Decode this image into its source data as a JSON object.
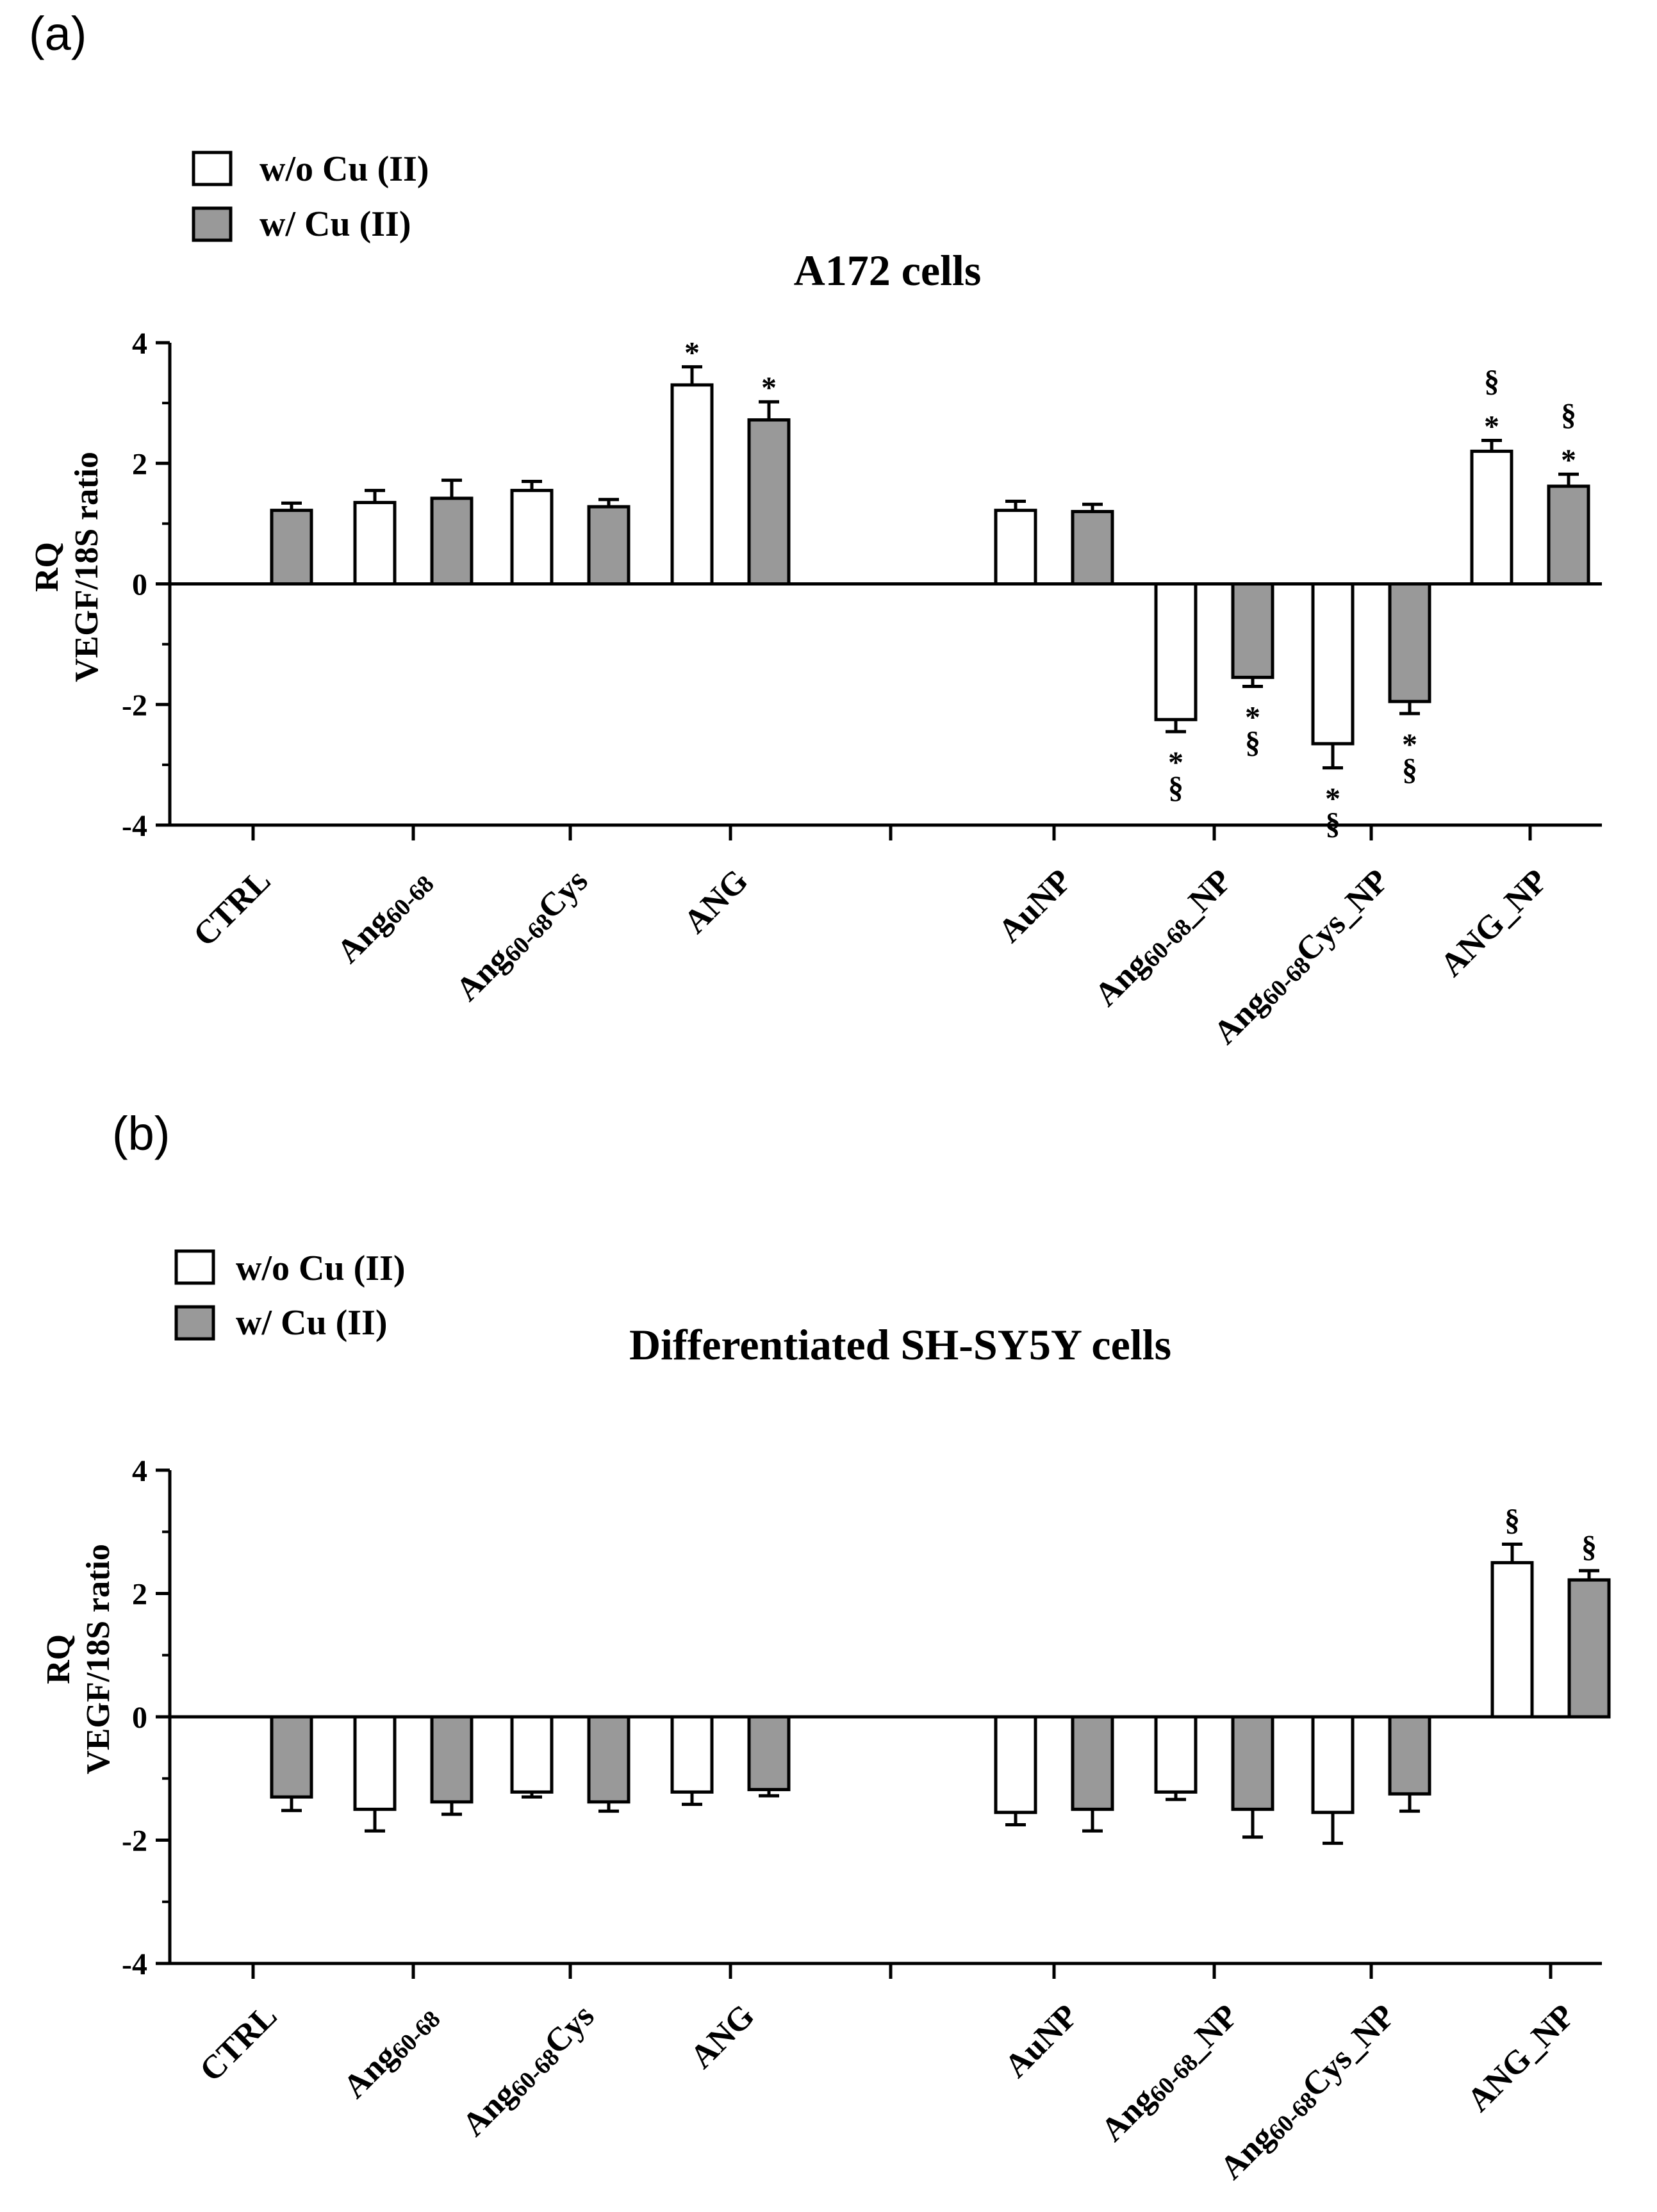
{
  "chart_data": [
    {
      "type": "bar",
      "panel_label": "(a)",
      "title": "A172 cells",
      "ylabel_line1": "RQ",
      "ylabel_line2": "VEGF/18S ratio",
      "ylim": [
        -4,
        4
      ],
      "yticks": [
        "4",
        "2",
        "0",
        "-2",
        "-4"
      ],
      "categories": [
        "CTRL",
        "Ang60-68",
        "Ang60-68Cys",
        "ANG",
        "AuNP",
        "Ang60-68_NP",
        "Ang60-68Cys_NP",
        "ANG_NP"
      ],
      "category_labels": [
        {
          "main": "CTRL"
        },
        {
          "main": "Ang",
          "sub": "60-68"
        },
        {
          "main": "Ang",
          "sub": "60-68",
          "tail": "Cys"
        },
        {
          "main": "ANG"
        },
        {
          "main": "AuNP"
        },
        {
          "main": "Ang",
          "sub": "60-68",
          "tail": "_NP"
        },
        {
          "main": "Ang",
          "sub": "60-68",
          "tail": "Cys_NP"
        },
        {
          "main": "ANG_NP"
        }
      ],
      "legend": [
        "w/o Cu (II)",
        "w/ Cu (II)"
      ],
      "series": [
        {
          "name": "w/o Cu (II)",
          "color": "#ffffff",
          "values": [
            null,
            1.35,
            1.55,
            3.3,
            1.22,
            -2.25,
            -2.65,
            2.2
          ],
          "errors": [
            null,
            0.2,
            0.15,
            0.3,
            0.15,
            0.2,
            0.4,
            0.18
          ],
          "sig": [
            "",
            "",
            "",
            "*",
            "",
            "*§",
            "*§",
            "§*"
          ]
        },
        {
          "name": "w/ Cu (II)",
          "color": "#999999",
          "values": [
            1.22,
            1.42,
            1.28,
            2.72,
            1.2,
            -1.55,
            -1.95,
            1.62
          ],
          "errors": [
            0.12,
            0.3,
            0.12,
            0.3,
            0.12,
            0.15,
            0.2,
            0.2
          ],
          "sig": [
            "",
            "",
            "",
            "*",
            "",
            "*§",
            "*§",
            "§*"
          ]
        }
      ]
    },
    {
      "type": "bar",
      "panel_label": "(b)",
      "title": "Differentiated SH-SY5Y cells",
      "ylabel_line1": "RQ",
      "ylabel_line2": "VEGF/18S ratio",
      "ylim": [
        -4,
        4
      ],
      "yticks": [
        "4",
        "2",
        "0",
        "-2",
        "-4"
      ],
      "categories": [
        "CTRL",
        "Ang60-68",
        "Ang60-68Cys",
        "ANG",
        "AuNP",
        "Ang60-68_NP",
        "Ang60-68Cys_NP",
        "ANG_NP"
      ],
      "category_labels": [
        {
          "main": "CTRL"
        },
        {
          "main": "Ang",
          "sub": "60-68"
        },
        {
          "main": "Ang",
          "sub": "60-68",
          "tail": "Cys"
        },
        {
          "main": "ANG"
        },
        {
          "main": "AuNP"
        },
        {
          "main": "Ang",
          "sub": "60-68",
          "tail": "_NP"
        },
        {
          "main": "Ang",
          "sub": "60-68",
          "tail": "Cys_NP"
        },
        {
          "main": "ANG_NP"
        }
      ],
      "legend": [
        "w/o Cu (II)",
        "w/ Cu (II)"
      ],
      "series": [
        {
          "name": "w/o Cu (II)",
          "color": "#ffffff",
          "values": [
            null,
            -1.5,
            -1.22,
            -1.22,
            -1.55,
            -1.22,
            -1.55,
            2.5
          ],
          "errors": [
            null,
            0.35,
            0.08,
            0.2,
            0.2,
            0.12,
            0.5,
            0.3
          ],
          "sig": [
            "",
            "",
            "",
            "",
            "",
            "",
            "",
            "§"
          ]
        },
        {
          "name": "w/ Cu (II)",
          "color": "#999999",
          "values": [
            -1.3,
            -1.38,
            -1.38,
            -1.18,
            -1.5,
            -1.5,
            -1.25,
            2.22
          ],
          "errors": [
            0.22,
            0.2,
            0.15,
            0.1,
            0.35,
            0.45,
            0.28,
            0.15
          ],
          "sig": [
            "",
            "",
            "",
            "",
            "",
            "",
            "",
            "§"
          ]
        }
      ]
    }
  ]
}
